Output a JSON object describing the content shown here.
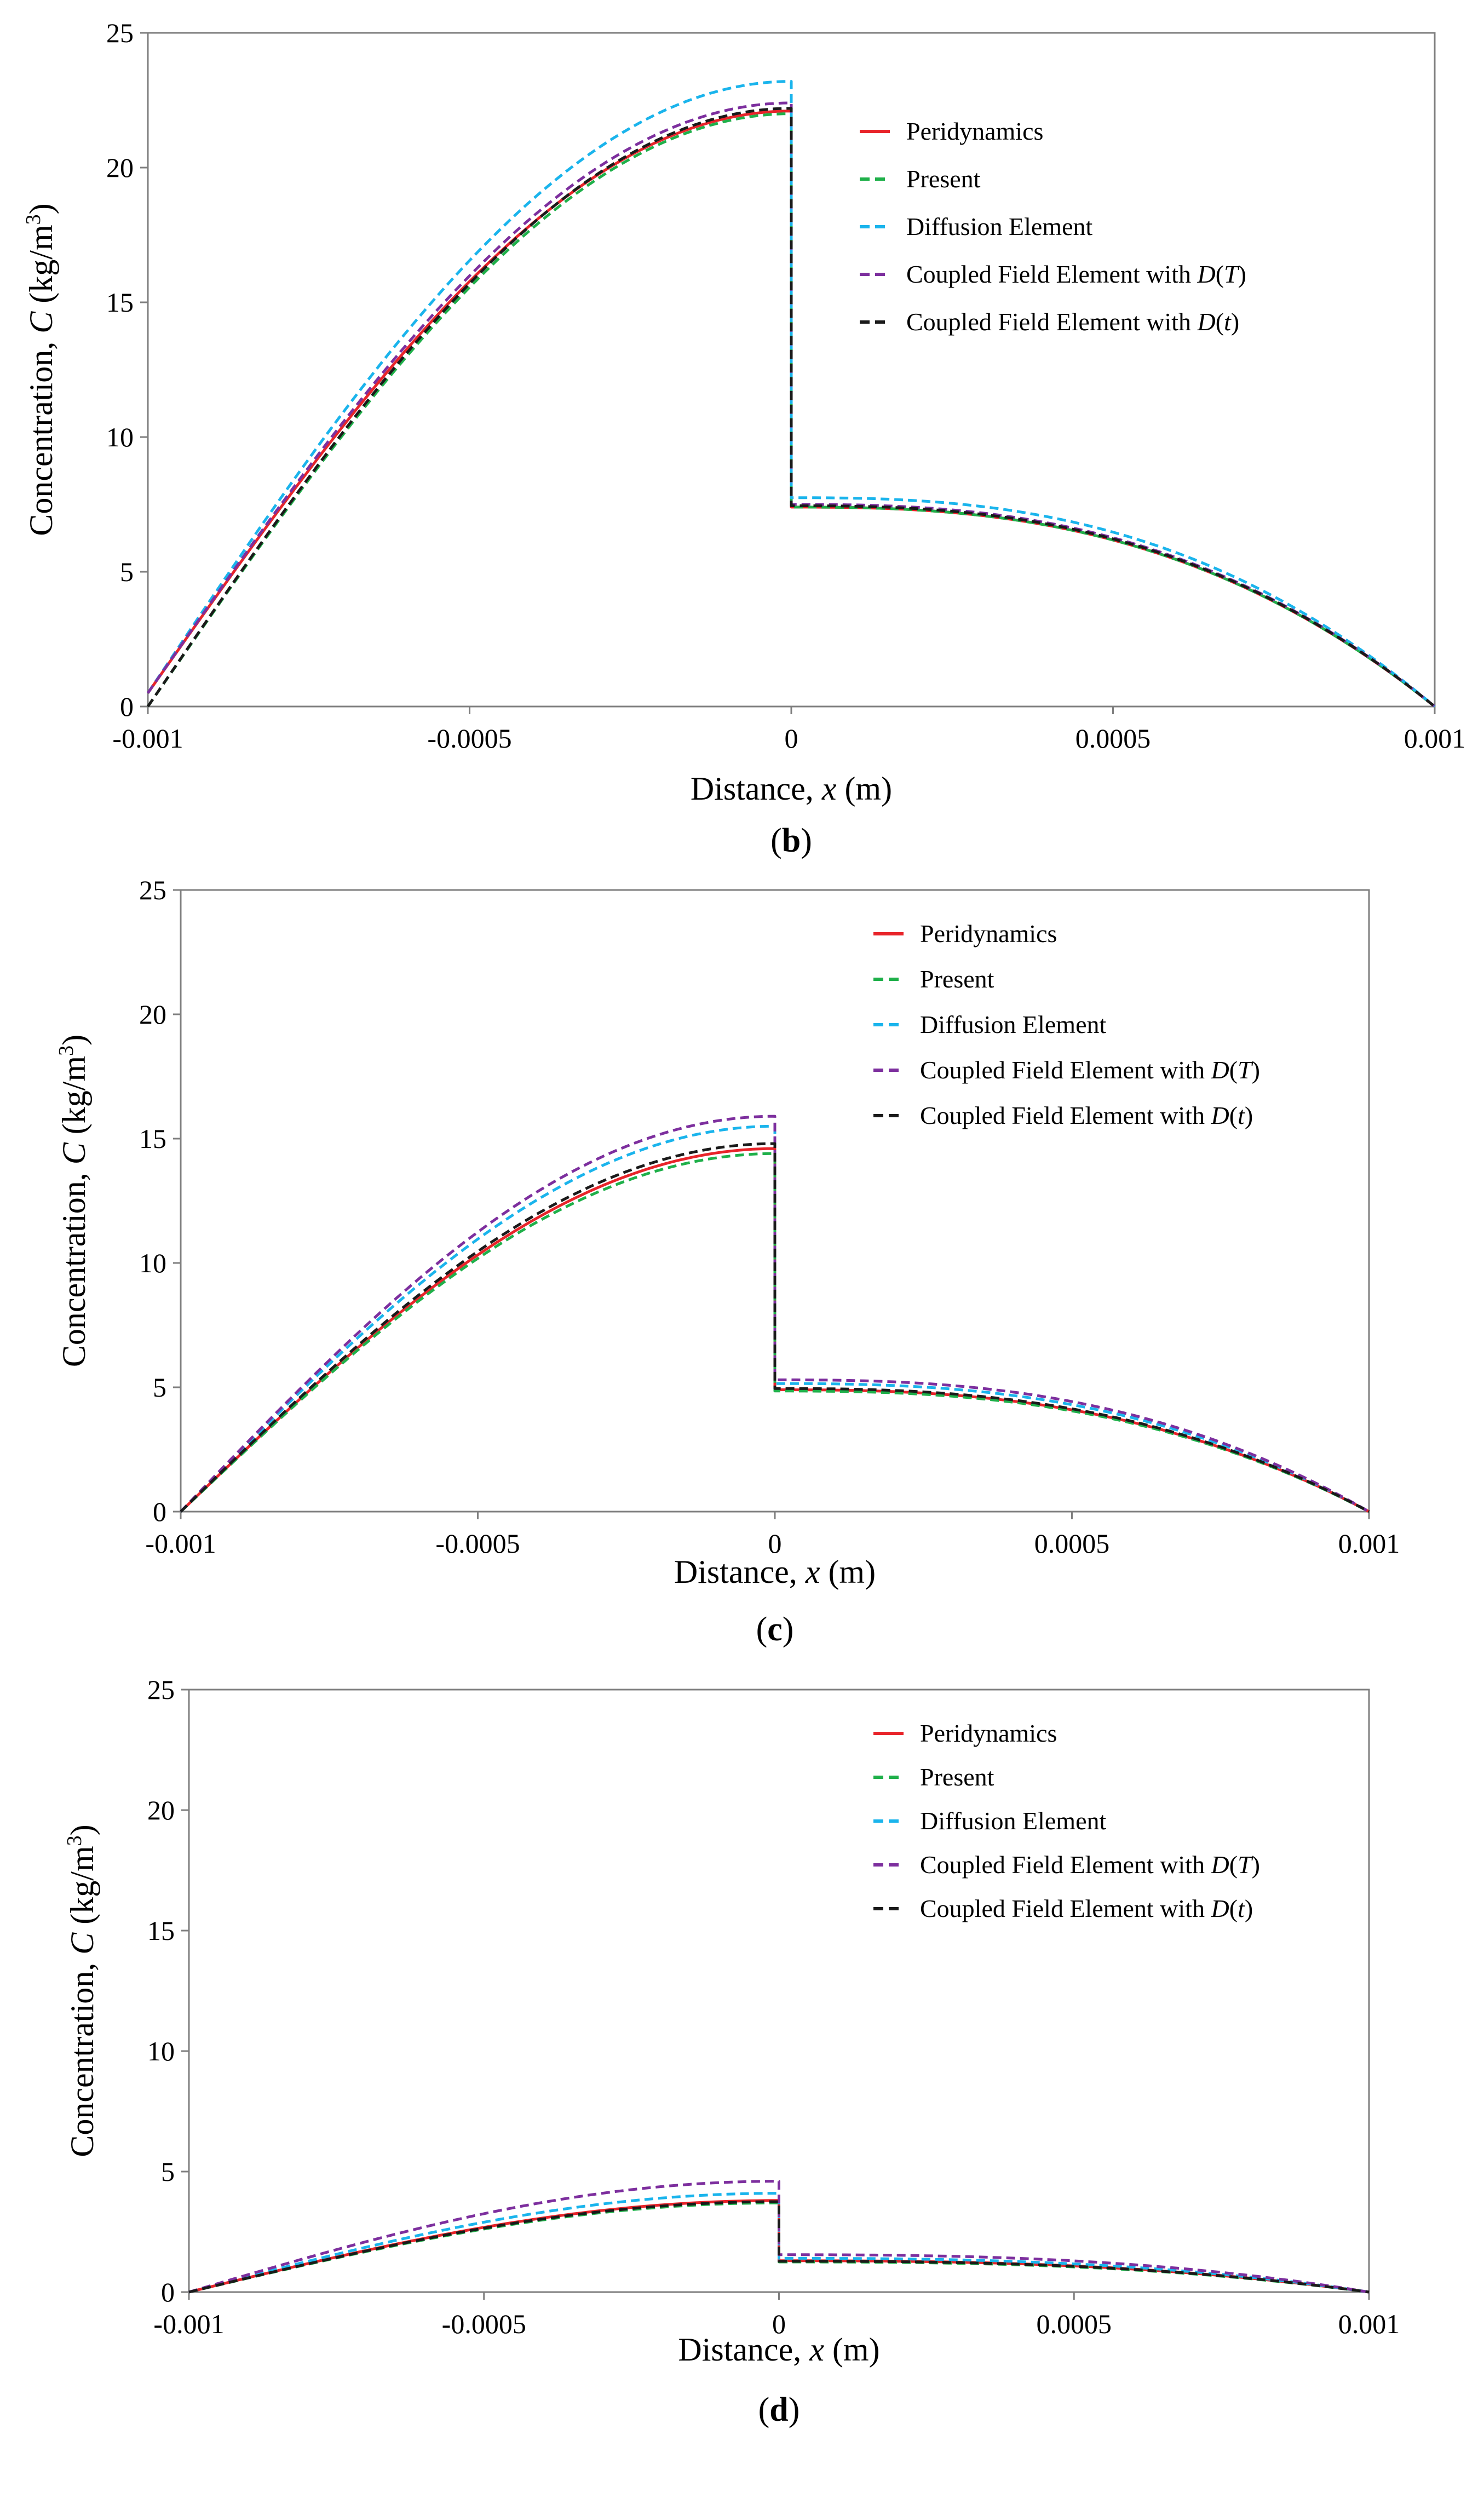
{
  "chart_data": [
    {
      "type": "line",
      "panel_label": "b",
      "xlabel": "Distance, ",
      "xlabel_var": "x",
      "xlabel_unit": " (m)",
      "ylabel": "Concentration, ",
      "ylabel_var": "C",
      "ylabel_unit": "  (kg/m",
      "ylabel_exp": "3",
      "ylabel_close": ")",
      "xlim": [
        -0.001,
        0.001
      ],
      "ylim": [
        0,
        25
      ],
      "xticks": [
        "-0.001",
        "-0.0005",
        "0",
        "0.0005",
        "0.001"
      ],
      "yticks": [
        "0",
        "5",
        "10",
        "15",
        "20",
        "25"
      ],
      "grid": false,
      "legend_position": "top-right",
      "series": [
        {
          "name": "Peridynamics",
          "color": "#e8242a",
          "dash": "solid",
          "left_start": 0.5,
          "left_peak": 22.1,
          "right_start": 7.4
        },
        {
          "name": "Present",
          "color": "#1fb04a",
          "dash": "dashed",
          "left_start": 0.0,
          "left_peak": 22.0,
          "right_start": 7.4
        },
        {
          "name": "Diffusion Element",
          "color": "#1ab4ec",
          "dash": "dashed",
          "left_start": 0.5,
          "left_peak": 23.2,
          "right_start": 7.75
        },
        {
          "name": "Coupled Field Element with D(T)",
          "name_main": "Coupled Field Element with ",
          "name_var": "D",
          "name_arg": "T",
          "color": "#7d2f9e",
          "dash": "dashed",
          "left_start": 0.5,
          "left_peak": 22.4,
          "right_start": 7.5
        },
        {
          "name": "Coupled Field Element with D(t)",
          "name_main": "Coupled Field Element with ",
          "name_var": "D",
          "name_arg": "t",
          "color": "#1a1a1a",
          "dash": "dashed",
          "left_start": 0.0,
          "left_peak": 22.2,
          "right_start": 7.45
        }
      ]
    },
    {
      "type": "line",
      "panel_label": "c",
      "xlabel": "Distance, ",
      "xlabel_var": "x",
      "xlabel_unit": " (m)",
      "ylabel": "Concentration, ",
      "ylabel_var": "C",
      "ylabel_unit": "  (kg/m",
      "ylabel_exp": "3",
      "ylabel_close": ")",
      "xlim": [
        -0.001,
        0.001
      ],
      "ylim": [
        0,
        25
      ],
      "xticks": [
        "-0.001",
        "-0.0005",
        "0",
        "0.0005",
        "0.001"
      ],
      "yticks": [
        "0",
        "5",
        "10",
        "15",
        "20",
        "25"
      ],
      "grid": false,
      "legend_position": "top-right",
      "series": [
        {
          "name": "Peridynamics",
          "color": "#e8242a",
          "dash": "solid",
          "left_start": 0.0,
          "left_peak": 14.6,
          "right_start": 4.9
        },
        {
          "name": "Present",
          "color": "#1fb04a",
          "dash": "dashed",
          "left_start": 0.0,
          "left_peak": 14.4,
          "right_start": 4.85
        },
        {
          "name": "Diffusion Element",
          "color": "#1ab4ec",
          "dash": "dashed",
          "left_start": 0.0,
          "left_peak": 15.5,
          "right_start": 5.15
        },
        {
          "name": "Coupled Field Element with D(T)",
          "name_main": "Coupled Field Element with ",
          "name_var": "D",
          "name_arg": "T",
          "color": "#7d2f9e",
          "dash": "dashed",
          "left_start": 0.0,
          "left_peak": 15.9,
          "right_start": 5.3
        },
        {
          "name": "Coupled Field Element with D(t)",
          "name_main": "Coupled Field Element with ",
          "name_var": "D",
          "name_arg": "t",
          "color": "#1a1a1a",
          "dash": "dashed",
          "left_start": 0.0,
          "left_peak": 14.8,
          "right_start": 4.95
        }
      ]
    },
    {
      "type": "line",
      "panel_label": "d",
      "xlabel": "Distance, ",
      "xlabel_var": "x",
      "xlabel_unit": " (m)",
      "ylabel": "Concentration, ",
      "ylabel_var": "C",
      "ylabel_unit": "  (kg/m",
      "ylabel_exp": "3",
      "ylabel_close": ")",
      "xlim": [
        -0.001,
        0.001
      ],
      "ylim": [
        0,
        25
      ],
      "xticks": [
        "-0.001",
        "-0.0005",
        "0",
        "0.0005",
        "0.001"
      ],
      "yticks": [
        "0",
        "5",
        "10",
        "15",
        "20",
        "25"
      ],
      "grid": false,
      "legend_position": "top-right",
      "series": [
        {
          "name": "Peridynamics",
          "color": "#e8242a",
          "dash": "solid",
          "left_start": 0.0,
          "left_peak": 3.8,
          "right_start": 1.3
        },
        {
          "name": "Present",
          "color": "#1fb04a",
          "dash": "dashed",
          "left_start": 0.0,
          "left_peak": 3.7,
          "right_start": 1.25
        },
        {
          "name": "Diffusion Element",
          "color": "#1ab4ec",
          "dash": "dashed",
          "left_start": 0.0,
          "left_peak": 4.1,
          "right_start": 1.4
        },
        {
          "name": "Coupled Field Element with D(T)",
          "name_main": "Coupled Field Element with ",
          "name_var": "D",
          "name_arg": "T",
          "color": "#7d2f9e",
          "dash": "dashed",
          "left_start": 0.0,
          "left_peak": 4.6,
          "right_start": 1.55
        },
        {
          "name": "Coupled Field Element with D(t)",
          "name_main": "Coupled Field Element with ",
          "name_var": "D",
          "name_arg": "t",
          "color": "#1a1a1a",
          "dash": "dashed",
          "left_start": 0.0,
          "left_peak": 3.75,
          "right_start": 1.28
        }
      ]
    }
  ]
}
